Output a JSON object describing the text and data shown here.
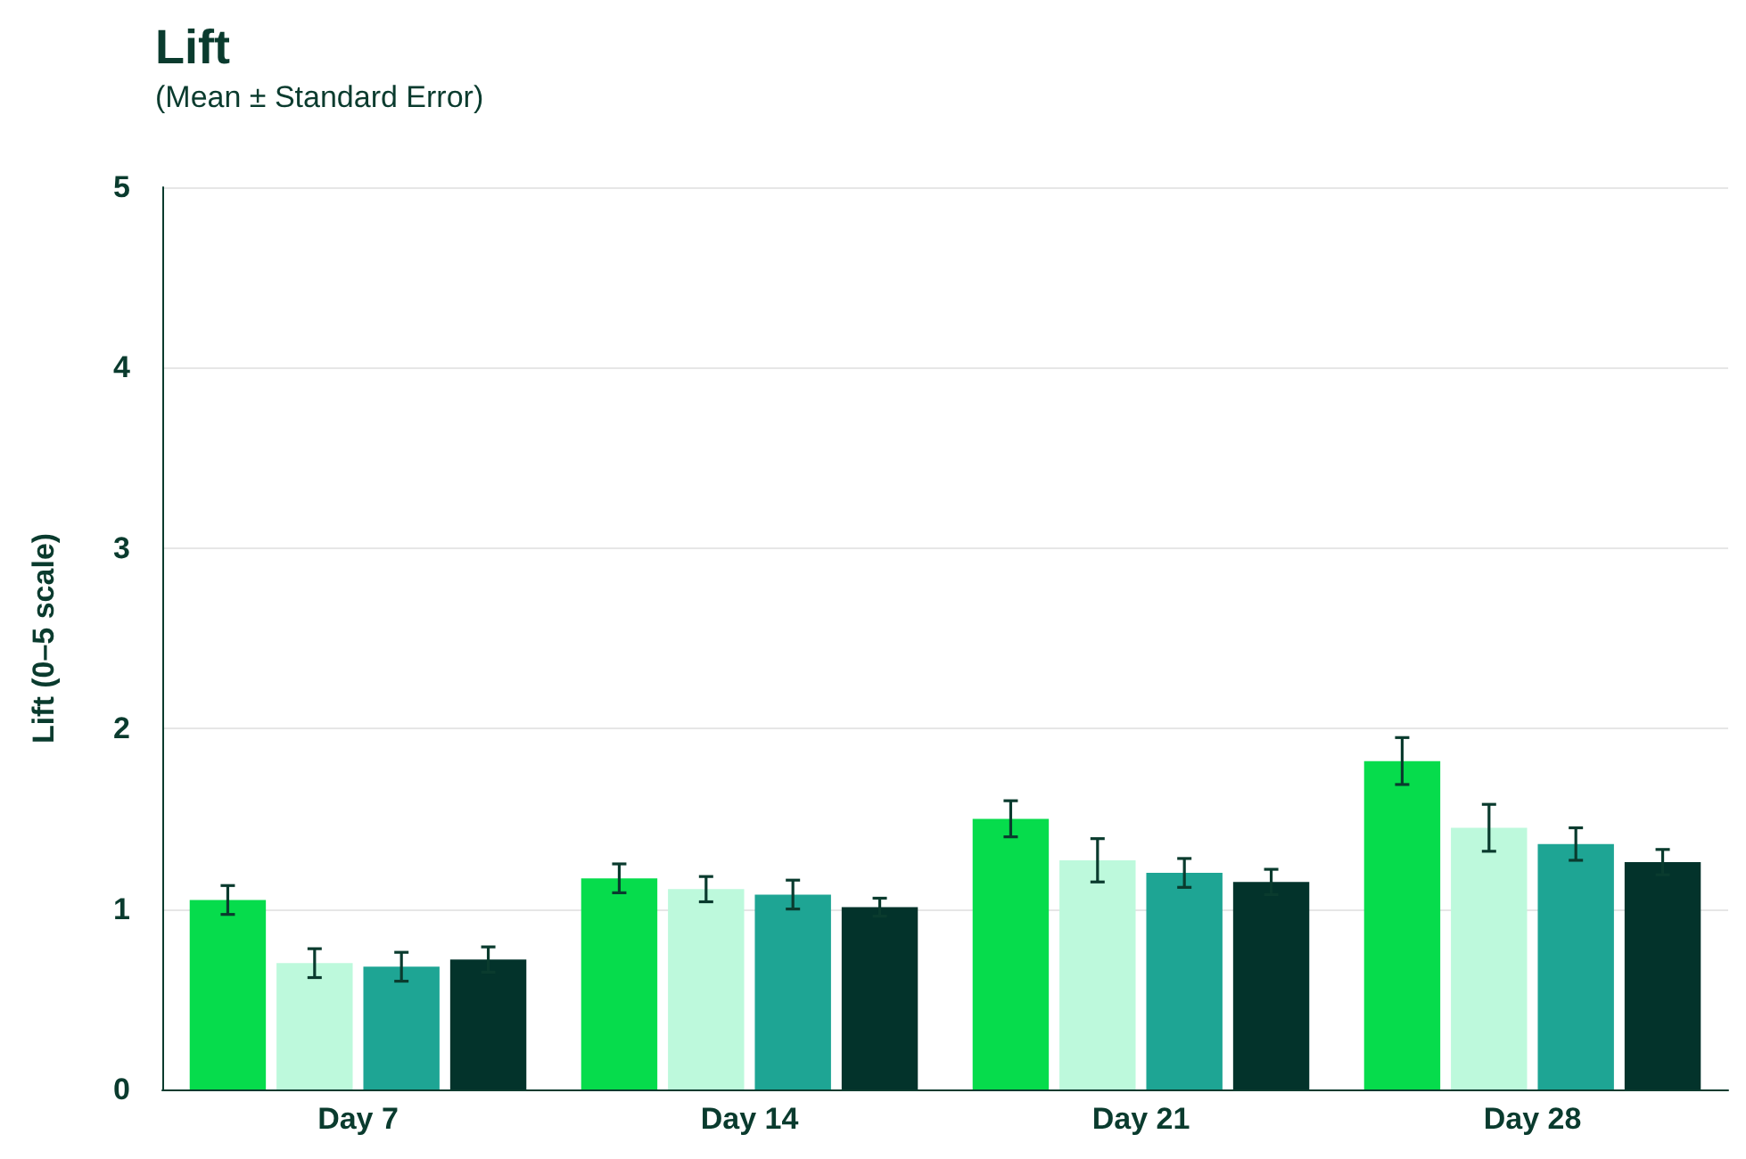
{
  "chart_data": {
    "type": "bar",
    "title": "Lift",
    "subtitle": "(Mean ± Standard Error)",
    "ylabel": "Lift (0–5 scale)",
    "categories": [
      "Day 7",
      "Day 14",
      "Day 21",
      "Day 28"
    ],
    "series": [
      {
        "color": "#06dc4c",
        "values": [
          1.05,
          1.17,
          1.5,
          1.82
        ],
        "errors": [
          0.08,
          0.08,
          0.1,
          0.13
        ]
      },
      {
        "color": "#bdf9dc",
        "values": [
          0.7,
          1.11,
          1.27,
          1.45
        ],
        "errors": [
          0.08,
          0.07,
          0.12,
          0.13
        ]
      },
      {
        "color": "#1ea594",
        "values": [
          0.68,
          1.08,
          1.2,
          1.36
        ],
        "errors": [
          0.08,
          0.08,
          0.08,
          0.09
        ]
      },
      {
        "color": "#03332b",
        "values": [
          0.72,
          1.01,
          1.15,
          1.26
        ],
        "errors": [
          0.07,
          0.05,
          0.07,
          0.07
        ]
      }
    ],
    "ylim": [
      0,
      5
    ],
    "yticks": [
      0,
      1,
      2,
      3,
      4,
      5
    ],
    "grid": "y"
  }
}
